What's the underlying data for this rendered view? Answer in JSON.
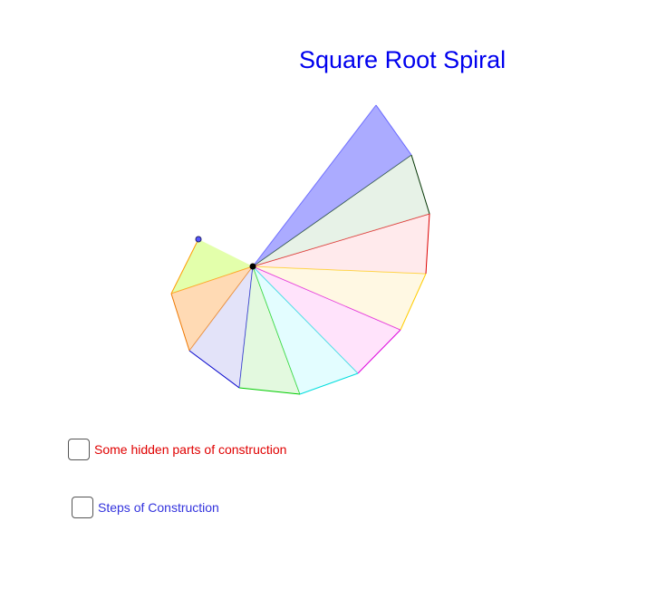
{
  "title": "Square Root Spiral",
  "checkboxes": [
    {
      "label": "Some hidden parts of construction",
      "checked": false,
      "color": "#e00000"
    },
    {
      "label": "Steps of Construction",
      "checked": false,
      "color": "#3333dd"
    }
  ],
  "spiral": {
    "center": "origin",
    "triangles": [
      {
        "name": "triangle-sqrt2",
        "fill": "#ccff66",
        "stroke": "#ff9900"
      },
      {
        "name": "triangle-sqrt3",
        "fill": "#ffbb77",
        "stroke": "#ee7700"
      },
      {
        "name": "triangle-sqrt4",
        "fill": "#ccccf4",
        "stroke": "#0000cc"
      },
      {
        "name": "triangle-sqrt5",
        "fill": "#ccf4c4",
        "stroke": "#00cc00"
      },
      {
        "name": "triangle-sqrt6",
        "fill": "#ccfcff",
        "stroke": "#00dddd"
      },
      {
        "name": "triangle-sqrt7",
        "fill": "#ffccf8",
        "stroke": "#dd00dd"
      },
      {
        "name": "triangle-sqrt8",
        "fill": "#fff2cc",
        "stroke": "#ffcc00"
      },
      {
        "name": "triangle-sqrt9",
        "fill": "#ffd8dc",
        "stroke": "#dd0000"
      },
      {
        "name": "triangle-sqrt10",
        "fill": "#d4e8d4",
        "stroke": "#003300"
      },
      {
        "name": "triangle-sqrt11",
        "fill": "#8888ff",
        "stroke": "#6666ff"
      }
    ],
    "center_point_color": "#000000",
    "free_point_color": "#5555ff"
  }
}
